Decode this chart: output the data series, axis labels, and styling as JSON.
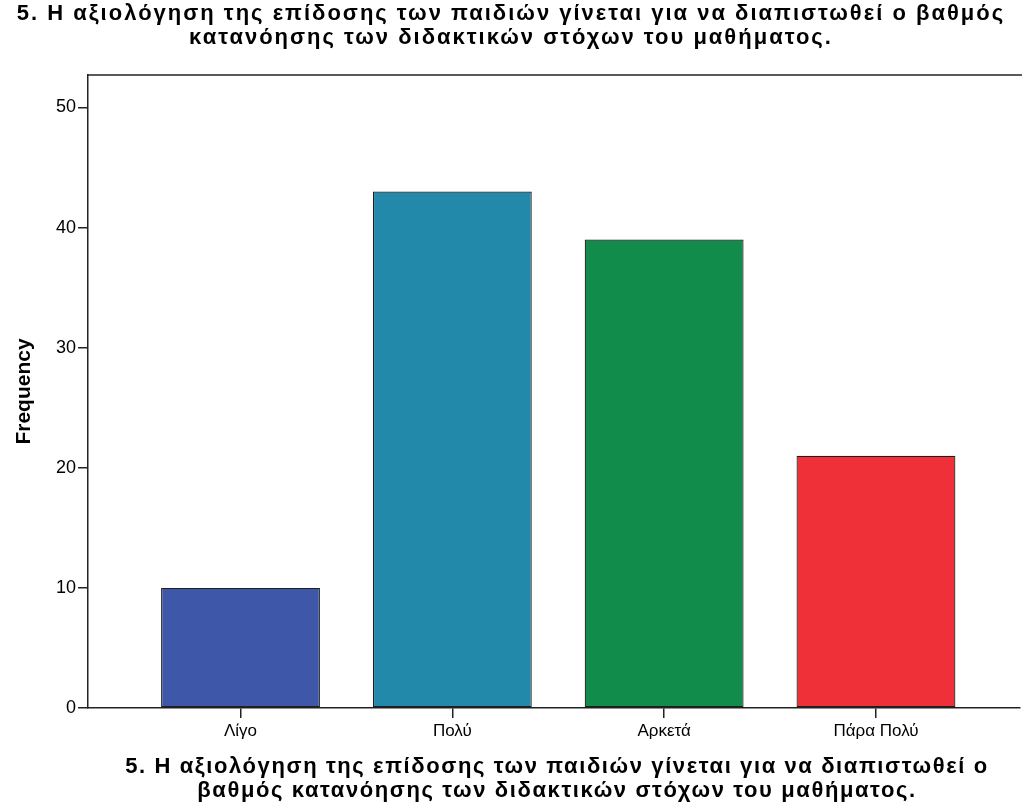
{
  "chart_data": {
    "type": "bar",
    "title": "5. Η αξιολόγηση της επίδοσης των παιδιών γίνεται για να διαπιστωθεί ο βαθμός κατανόησης των διδακτικών στόχων του μαθήματος.",
    "xlabel": "5. Η αξιολόγηση της επίδοσης των παιδιών γίνεται για να διαπιστωθεί ο βαθμός κατανόησης των διδακτικών στόχων του μαθήματος.",
    "ylabel": "Frequency",
    "categories": [
      "Λίγο",
      "Πολύ",
      "Αρκετά",
      "Πάρα Πολύ"
    ],
    "values": [
      10,
      43,
      39,
      21
    ],
    "colors": [
      "#3f57a8",
      "#2389ab",
      "#118c4a",
      "#ef3038"
    ],
    "ylim": [
      0,
      52.7
    ],
    "yticks": [
      0,
      10,
      20,
      30,
      40,
      50
    ]
  }
}
